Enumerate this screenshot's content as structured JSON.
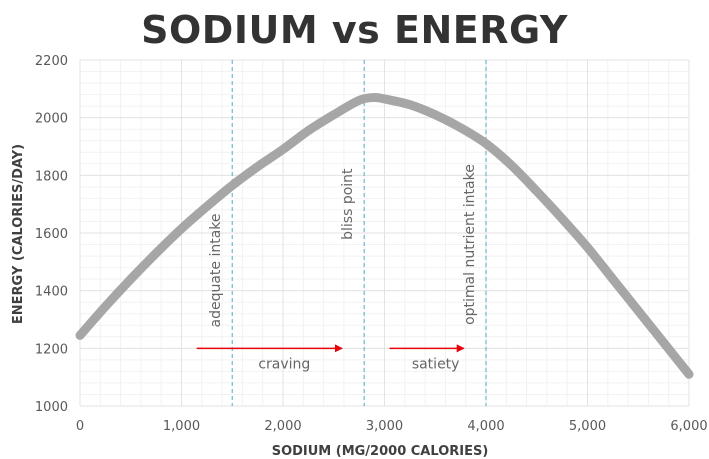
{
  "chart_data": {
    "type": "line",
    "title": "SODIUM vs ENERGY",
    "xlabel": "SODIUM (MG/2000 CALORIES)",
    "ylabel": "ENERGY (CALORIES/DAY)",
    "xlim": [
      0,
      6000
    ],
    "ylim": [
      1000,
      2200
    ],
    "x_ticks": [
      0,
      1000,
      2000,
      3000,
      4000,
      5000,
      6000
    ],
    "x_tick_labels": [
      "0",
      "1,000",
      "2,000",
      "3,000",
      "4,000",
      "5,000",
      "6,000"
    ],
    "y_ticks": [
      1000,
      1200,
      1400,
      1600,
      1800,
      2000,
      2200
    ],
    "y_tick_labels": [
      "1000",
      "1200",
      "1400",
      "1600",
      "1800",
      "2000",
      "2200"
    ],
    "grid": true,
    "series": [
      {
        "name": "Energy",
        "color": "#a6a6a6",
        "x": [
          0,
          250,
          500,
          750,
          1000,
          1250,
          1500,
          1750,
          2000,
          2250,
          2500,
          2750,
          2900,
          3000,
          3250,
          3500,
          3750,
          4000,
          4250,
          4500,
          4750,
          5000,
          5250,
          5500,
          5750,
          6000
        ],
        "y": [
          1245,
          1345,
          1440,
          1530,
          1615,
          1692,
          1765,
          1830,
          1890,
          1955,
          2010,
          2060,
          2070,
          2065,
          2045,
          2010,
          1965,
          1910,
          1835,
          1745,
          1650,
          1550,
          1440,
          1330,
          1220,
          1110
        ]
      }
    ],
    "reference_lines": [
      {
        "x": 1500,
        "label": "adequate intake",
        "color": "#6fb7cf"
      },
      {
        "x": 2800,
        "label": "bliss point",
        "color": "#6fb7cf"
      },
      {
        "x": 4000,
        "label": "optimal nutrient intake",
        "color": "#6fb7cf"
      }
    ],
    "arrows": [
      {
        "x_from": 1150,
        "x_to": 2600,
        "y": 1200,
        "label": "craving",
        "color": "#e8000b"
      },
      {
        "x_from": 3050,
        "x_to": 3800,
        "y": 1200,
        "label": "satiety",
        "color": "#e8000b"
      }
    ]
  }
}
